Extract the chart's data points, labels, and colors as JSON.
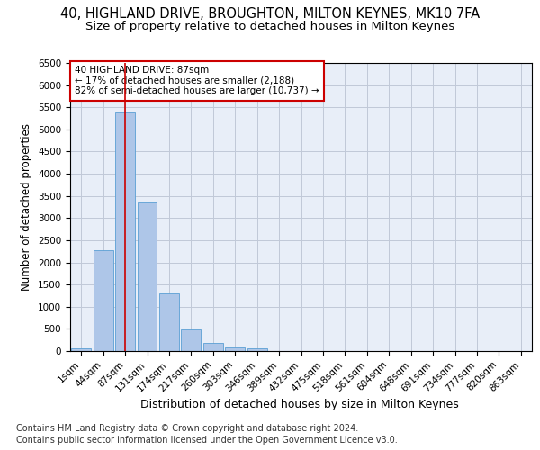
{
  "title_line1": "40, HIGHLAND DRIVE, BROUGHTON, MILTON KEYNES, MK10 7FA",
  "title_line2": "Size of property relative to detached houses in Milton Keynes",
  "xlabel": "Distribution of detached houses by size in Milton Keynes",
  "ylabel": "Number of detached properties",
  "categories": [
    "1sqm",
    "44sqm",
    "87sqm",
    "131sqm",
    "174sqm",
    "217sqm",
    "260sqm",
    "303sqm",
    "346sqm",
    "389sqm",
    "432sqm",
    "475sqm",
    "518sqm",
    "561sqm",
    "604sqm",
    "648sqm",
    "691sqm",
    "734sqm",
    "777sqm",
    "820sqm",
    "863sqm"
  ],
  "values": [
    70,
    2280,
    5380,
    3360,
    1290,
    480,
    185,
    80,
    55,
    0,
    0,
    0,
    0,
    0,
    0,
    0,
    0,
    0,
    0,
    0,
    0
  ],
  "bar_color": "#aec6e8",
  "bar_edge_color": "#5a9fd4",
  "vline_x_index": 2,
  "vline_color": "#cc0000",
  "annotation_text": "40 HIGHLAND DRIVE: 87sqm\n← 17% of detached houses are smaller (2,188)\n82% of semi-detached houses are larger (10,737) →",
  "annotation_box_color": "white",
  "annotation_box_edge_color": "#cc0000",
  "ylim": [
    0,
    6500
  ],
  "yticks": [
    0,
    500,
    1000,
    1500,
    2000,
    2500,
    3000,
    3500,
    4000,
    4500,
    5000,
    5500,
    6000,
    6500
  ],
  "grid_color": "#c0c8d8",
  "background_color": "#e8eef8",
  "footer_line1": "Contains HM Land Registry data © Crown copyright and database right 2024.",
  "footer_line2": "Contains public sector information licensed under the Open Government Licence v3.0.",
  "title_fontsize": 10.5,
  "subtitle_fontsize": 9.5,
  "axis_label_fontsize": 8.5,
  "tick_fontsize": 7.5,
  "footer_fontsize": 7.0,
  "ann_fontsize": 7.5
}
